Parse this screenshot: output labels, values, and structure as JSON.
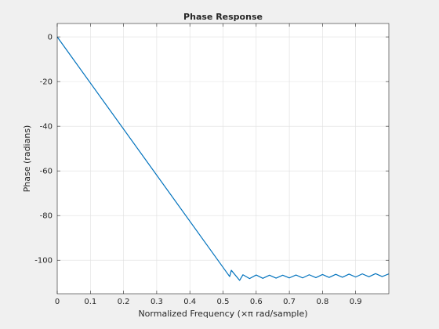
{
  "chart_data": {
    "type": "line",
    "title": "Phase Response",
    "xlabel": "Normalized Frequency (×π rad/sample)",
    "ylabel": "Phase (radians)",
    "xlim": [
      0,
      1
    ],
    "ylim": [
      -115,
      6
    ],
    "x_ticks": [
      0,
      0.1,
      0.2,
      0.3,
      0.4,
      0.5,
      0.6,
      0.7,
      0.8,
      0.9
    ],
    "x_tick_labels": [
      "0",
      "0.1",
      "0.2",
      "0.3",
      "0.4",
      "0.5",
      "0.6",
      "0.7",
      "0.8",
      "0.9"
    ],
    "y_ticks": [
      0,
      -20,
      -40,
      -60,
      -80,
      -100
    ],
    "y_tick_labels": [
      "0",
      "-20",
      "-40",
      "-60",
      "-80",
      "-100"
    ],
    "grid": true,
    "series": [
      {
        "color": "#0072bd",
        "x": [
          0,
          0.52,
          0.525,
          0.55,
          0.56,
          0.58,
          0.6,
          0.62,
          0.64,
          0.66,
          0.68,
          0.7,
          0.72,
          0.74,
          0.76,
          0.78,
          0.8,
          0.82,
          0.84,
          0.86,
          0.88,
          0.9,
          0.92,
          0.94,
          0.96,
          0.98,
          1.0
        ],
        "y": [
          0,
          -107.3,
          -104.5,
          -109.0,
          -106.5,
          -108.2,
          -106.6,
          -108.1,
          -106.7,
          -108.0,
          -106.7,
          -107.9,
          -106.6,
          -107.9,
          -106.5,
          -107.8,
          -106.4,
          -107.7,
          -106.3,
          -107.6,
          -106.2,
          -107.5,
          -106.1,
          -107.4,
          -106.0,
          -107.3,
          -106.1
        ]
      }
    ]
  }
}
